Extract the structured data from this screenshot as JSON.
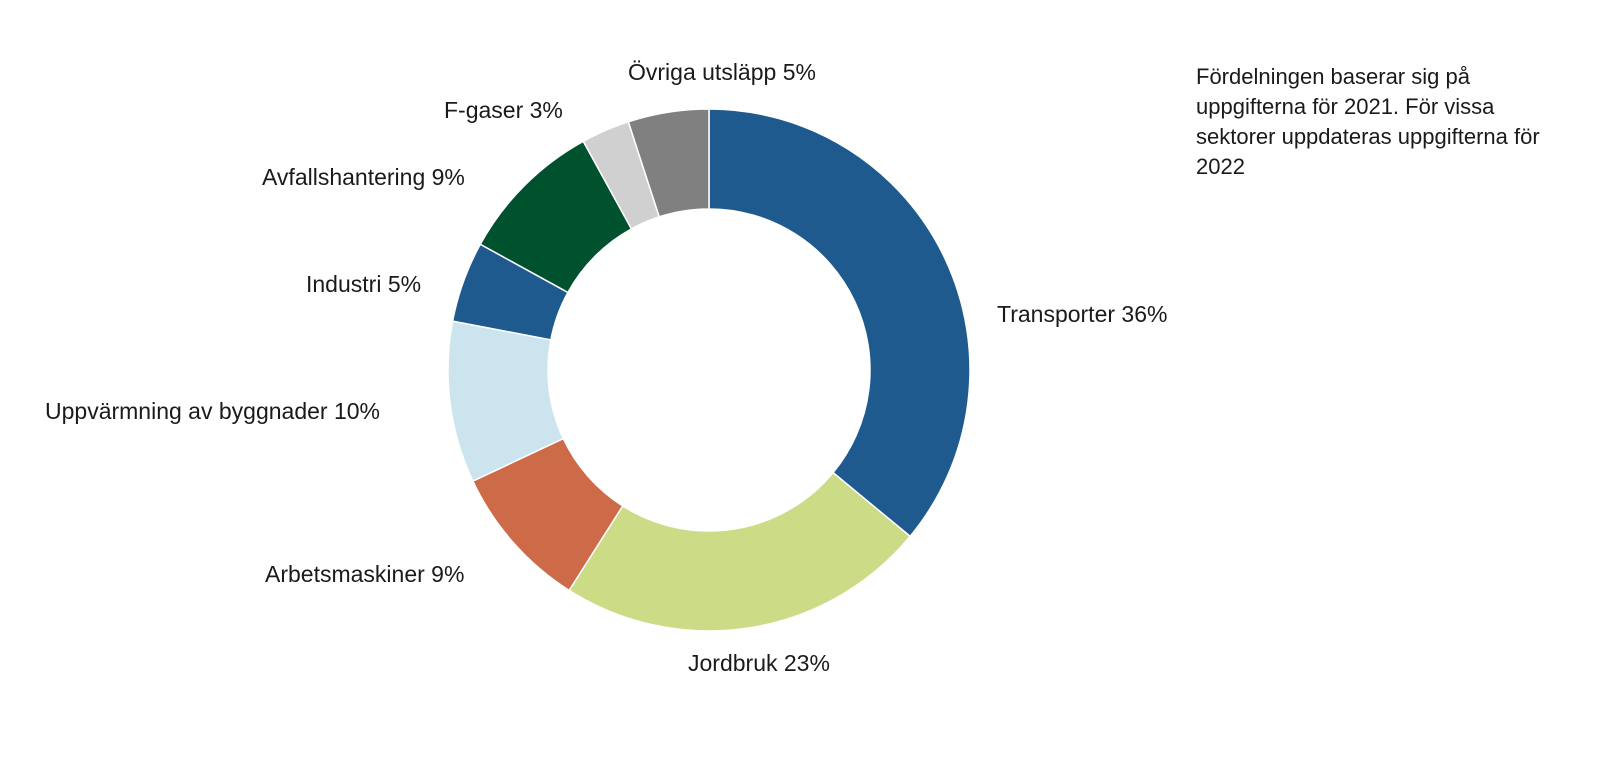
{
  "chart_data": {
    "type": "pie",
    "variant": "donut",
    "title": "",
    "unit": "%",
    "slices": [
      {
        "label": "Transporter",
        "value": 36,
        "color": "#1f5a8f"
      },
      {
        "label": "Jordbruk",
        "value": 23,
        "color": "#cbdb86"
      },
      {
        "label": "Arbetsmaskiner",
        "value": 9,
        "color": "#cd6a47"
      },
      {
        "label": "Uppvärmning av byggnader",
        "value": 10,
        "color": "#cbe4ee"
      },
      {
        "label": "Industri",
        "value": 5,
        "color": "#1f5a8f"
      },
      {
        "label": "Avfallshantering",
        "value": 9,
        "color": "#00522f"
      },
      {
        "label": "F-gaser",
        "value": 3,
        "color": "#d0d0d0"
      },
      {
        "label": "Övriga utsläpp",
        "value": 5,
        "color": "#808080"
      }
    ],
    "data_labels": [
      "Transporter 36%",
      "Jordbruk 23%",
      "Arbetsmaskiner 9%",
      "Uppvärmning av byggnader 10%",
      "Industri 5%",
      "Avfallshantering 9%",
      "F-gaser 3%",
      "Övriga utsläpp 5%"
    ],
    "annotation": "Fördelningen baserar sig på uppgifterna för 2021. För vissa sektorer uppdateras uppgifterna för 2022"
  }
}
